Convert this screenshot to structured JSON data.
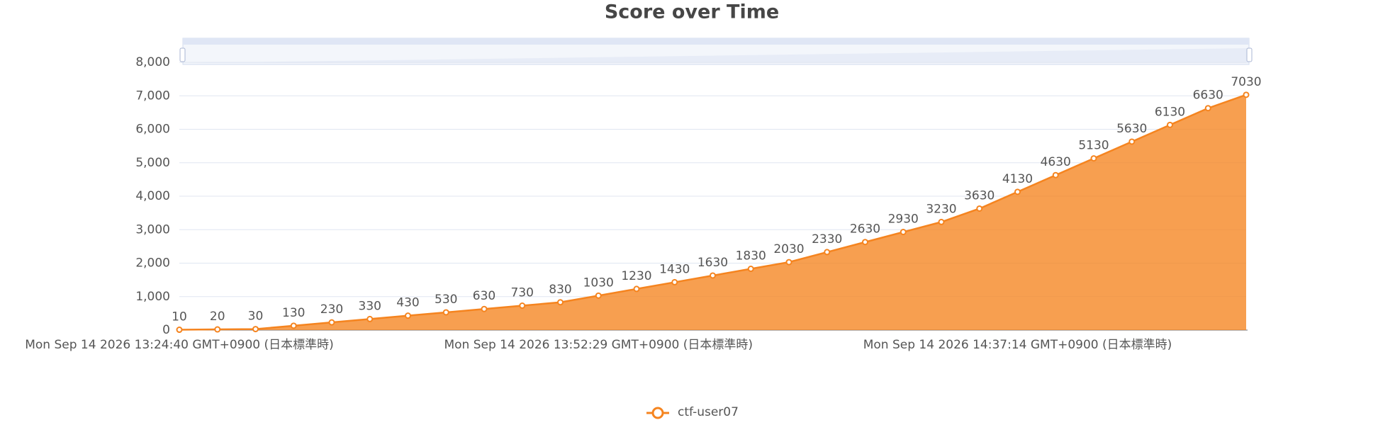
{
  "chart_data": {
    "type": "line",
    "title": "Score over Time",
    "categories": [
      "Mon Sep 14 2026 13:24:40 GMT+0900 (日本標準時)",
      null,
      null,
      null,
      null,
      null,
      null,
      null,
      null,
      null,
      null,
      "Mon Sep 14 2026 13:52:29 GMT+0900 (日本標準時)",
      null,
      null,
      null,
      null,
      null,
      null,
      null,
      null,
      null,
      null,
      "Mon Sep 14 2026 14:37:14 GMT+0900 (日本標準時)",
      null,
      null,
      null,
      null,
      null,
      null
    ],
    "series": [
      {
        "name": "ctf-user07",
        "color": "#f5841f",
        "values": [
          10,
          20,
          30,
          130,
          230,
          330,
          430,
          530,
          630,
          730,
          830,
          1030,
          1230,
          1430,
          1630,
          1830,
          2030,
          2330,
          2630,
          2930,
          3230,
          3630,
          4130,
          4630,
          5130,
          5630,
          6130,
          6630,
          7030
        ]
      }
    ],
    "ylim": [
      0,
      8000
    ],
    "yticks": [
      0,
      {
        "value": 1000,
        "label": "1,000"
      },
      {
        "value": 2000,
        "label": "2,000"
      },
      {
        "value": 3000,
        "label": "3,000"
      },
      {
        "value": 4000,
        "label": "4,000"
      },
      {
        "value": 5000,
        "label": "5,000"
      },
      {
        "value": 6000,
        "label": "6,000"
      },
      {
        "value": 7000,
        "label": "7,000"
      },
      {
        "value": 8000,
        "label": "8,000"
      }
    ],
    "grid": true,
    "area": true
  }
}
